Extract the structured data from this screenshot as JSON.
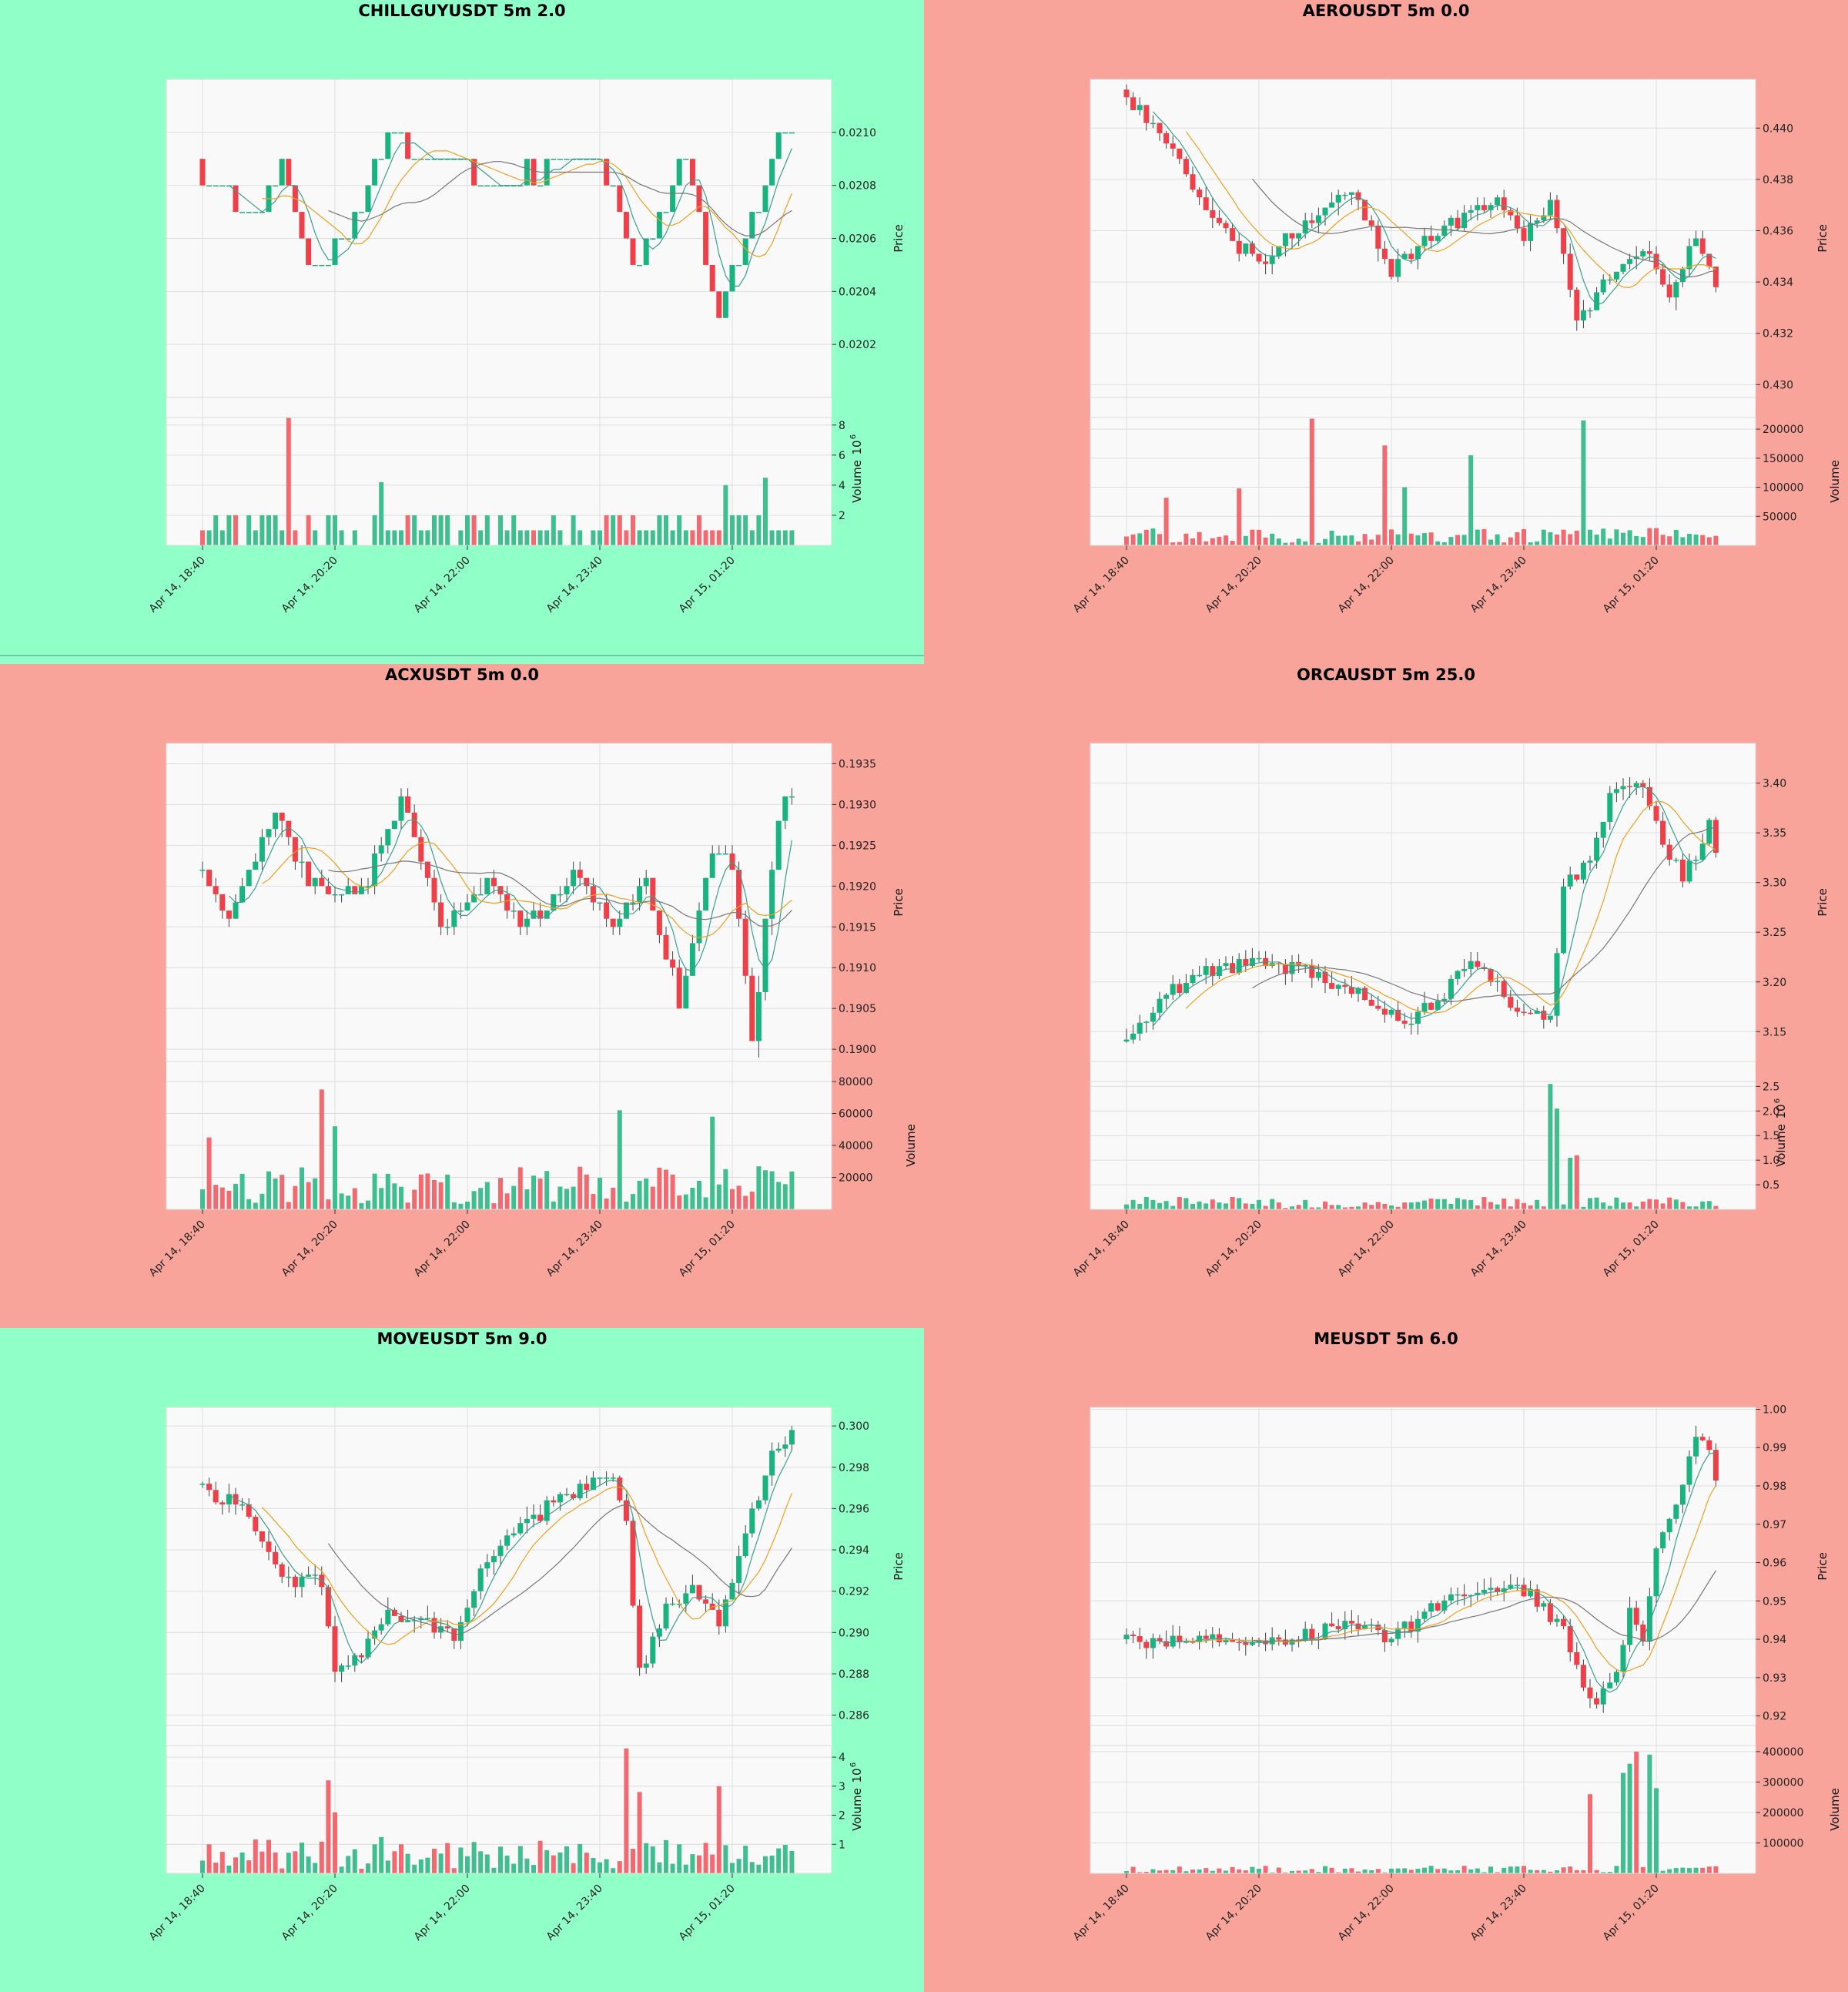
{
  "colors": {
    "up": "#19b380",
    "down": "#ef3f48",
    "vol_up": "#3fbf8f",
    "vol_down": "#f26a6f",
    "panel_green": "#90ffc8",
    "panel_red": "#f8a49b",
    "plot_bg": "#f9f9f9",
    "grid": "#dedede",
    "ma_fast": "#3aa18a",
    "ma_mid": "#f0a020",
    "ma_slow": "#777777"
  },
  "x_tick_labels": [
    "Apr 14, 18:40",
    "Apr 14, 20:20",
    "Apr 14, 22:00",
    "Apr 14, 23:40",
    "Apr 15, 01:20"
  ],
  "chart_data": [
    {
      "type": "candlestick",
      "title": "CHILLGUYUSDT 5m 2.0",
      "background": "green",
      "ylabel": "Price",
      "vol_label": "Volume",
      "vol_exp": "10",
      "vol_exp_power": "6",
      "ylim": [
        0.02,
        0.0212
      ],
      "price_ticks": [
        "0.0202",
        "0.0204",
        "0.0206",
        "0.0208",
        "0.0210"
      ],
      "vol_ylim": [
        0,
        8.5
      ],
      "vol_ticks": [
        "2",
        "4",
        "6",
        "8"
      ],
      "start": 0.0209,
      "n": 90,
      "vol": 1.0,
      "vol_max": 8.5,
      "vol_dec": 0,
      "dec": 4,
      "tick": 0.0001,
      "keys": [
        [
          0,
          0.0208
        ],
        [
          8,
          0.0207
        ],
        [
          12,
          0.0209
        ],
        [
          16,
          0.0205
        ],
        [
          22,
          0.0206
        ],
        [
          28,
          0.021
        ],
        [
          35,
          0.0209
        ],
        [
          45,
          0.0208
        ],
        [
          55,
          0.0209
        ],
        [
          60,
          0.0209
        ],
        [
          66,
          0.0205
        ],
        [
          73,
          0.0209
        ],
        [
          78,
          0.0203
        ],
        [
          83,
          0.0207
        ],
        [
          87,
          0.021
        ],
        [
          89,
          0.021
        ]
      ],
      "spikes": [
        [
          13,
          8.5
        ],
        [
          27,
          4.2
        ],
        [
          79,
          4.0
        ],
        [
          85,
          4.5
        ]
      ]
    },
    {
      "type": "candlestick",
      "title": "AEROUSDT 5m 0.0",
      "background": "red",
      "ylabel": "Price",
      "vol_label": "Volume",
      "ylim": [
        0.4295,
        0.4419
      ],
      "price_ticks": [
        "0.430",
        "0.432",
        "0.434",
        "0.436",
        "0.438",
        "0.440"
      ],
      "vol_ylim": [
        0,
        220000
      ],
      "vol_ticks": [
        "50000",
        "100000",
        "150000",
        "200000"
      ],
      "start": 0.4415,
      "n": 90,
      "vol": 12000,
      "vol_max": 220000,
      "vol_dec": 0,
      "dec": 4,
      "tick": 0,
      "keys": [
        [
          0,
          0.4412
        ],
        [
          6,
          0.4395
        ],
        [
          14,
          0.436
        ],
        [
          20,
          0.4348
        ],
        [
          28,
          0.4365
        ],
        [
          34,
          0.4375
        ],
        [
          40,
          0.4345
        ],
        [
          48,
          0.4362
        ],
        [
          56,
          0.4372
        ],
        [
          60,
          0.4358
        ],
        [
          64,
          0.4372
        ],
        [
          68,
          0.4325
        ],
        [
          72,
          0.4338
        ],
        [
          78,
          0.4355
        ],
        [
          82,
          0.4332
        ],
        [
          86,
          0.4358
        ],
        [
          89,
          0.4335
        ]
      ],
      "spikes": [
        [
          28,
          218000
        ],
        [
          39,
          172000
        ],
        [
          42,
          100000
        ],
        [
          52,
          155000
        ],
        [
          69,
          215000
        ],
        [
          6,
          82000
        ],
        [
          17,
          98000
        ]
      ]
    },
    {
      "type": "candlestick",
      "title": "ACXUSDT 5m 0.0",
      "background": "red",
      "ylabel": "Price",
      "vol_label": "Volume",
      "ylim": [
        0.18985,
        0.19375
      ],
      "price_ticks": [
        "0.1900",
        "0.1905",
        "0.1910",
        "0.1915",
        "0.1920",
        "0.1925",
        "0.1930",
        "0.1935"
      ],
      "vol_ylim": [
        0,
        80000
      ],
      "vol_ticks": [
        "20000",
        "40000",
        "60000",
        "80000"
      ],
      "start": 0.1922,
      "n": 90,
      "vol": 11000,
      "vol_max": 80000,
      "vol_dec": 0,
      "dec": 4,
      "tick": 0,
      "keys": [
        [
          0,
          0.1922
        ],
        [
          4,
          0.1916
        ],
        [
          11,
          0.1929
        ],
        [
          16,
          0.192
        ],
        [
          24,
          0.1919
        ],
        [
          30,
          0.1931
        ],
        [
          36,
          0.1915
        ],
        [
          43,
          0.1921
        ],
        [
          48,
          0.1915
        ],
        [
          56,
          0.1921
        ],
        [
          62,
          0.1916
        ],
        [
          67,
          0.192
        ],
        [
          72,
          0.1906
        ],
        [
          77,
          0.1925
        ],
        [
          80,
          0.1923
        ],
        [
          83,
          0.1901
        ],
        [
          86,
          0.1923
        ],
        [
          88,
          0.1931
        ],
        [
          89,
          0.1931
        ]
      ],
      "spikes": [
        [
          18,
          75000
        ],
        [
          20,
          52000
        ],
        [
          63,
          62000
        ],
        [
          77,
          58000
        ],
        [
          1,
          45000
        ]
      ]
    },
    {
      "type": "candlestick",
      "title": "ORCAUSDT 5m 25.0",
      "background": "red",
      "ylabel": "Price",
      "vol_label": "Volume",
      "vol_exp": "10",
      "vol_exp_power": "6",
      "ylim": [
        3.12,
        3.44
      ],
      "price_ticks": [
        "3.15",
        "3.20",
        "3.25",
        "3.30",
        "3.35",
        "3.40"
      ],
      "vol_ylim": [
        0,
        2.6
      ],
      "vol_ticks": [
        "0.5",
        "1.0",
        "1.5",
        "2.0",
        "2.5"
      ],
      "start": 3.14,
      "n": 90,
      "vol": 0.1,
      "vol_max": 2.6,
      "vol_dec": 2,
      "dec": 3,
      "tick": 0,
      "keys": [
        [
          0,
          3.14
        ],
        [
          6,
          3.19
        ],
        [
          12,
          3.21
        ],
        [
          20,
          3.22
        ],
        [
          28,
          3.21
        ],
        [
          34,
          3.19
        ],
        [
          42,
          3.16
        ],
        [
          48,
          3.19
        ],
        [
          52,
          3.22
        ],
        [
          58,
          3.18
        ],
        [
          64,
          3.16
        ],
        [
          66,
          3.29
        ],
        [
          70,
          3.33
        ],
        [
          74,
          3.4
        ],
        [
          78,
          3.39
        ],
        [
          80,
          3.36
        ],
        [
          84,
          3.3
        ],
        [
          88,
          3.36
        ],
        [
          89,
          3.33
        ]
      ],
      "spikes": [
        [
          64,
          2.55
        ],
        [
          65,
          2.05
        ],
        [
          67,
          1.05
        ],
        [
          68,
          1.1
        ]
      ]
    },
    {
      "type": "candlestick",
      "title": "MOVEUSDT 5m 9.0",
      "background": "green",
      "ylabel": "Price",
      "vol_label": "Volume",
      "vol_exp": "10",
      "vol_exp_power": "6",
      "ylim": [
        0.2855,
        0.3009
      ],
      "price_ticks": [
        "0.286",
        "0.288",
        "0.290",
        "0.292",
        "0.294",
        "0.296",
        "0.298",
        "0.300"
      ],
      "vol_ylim": [
        0,
        4.4
      ],
      "vol_ticks": [
        "1",
        "2",
        "3",
        "4"
      ],
      "start": 0.2972,
      "n": 90,
      "vol": 0.5,
      "vol_max": 4.4,
      "vol_dec": 2,
      "dec": 4,
      "tick": 0,
      "keys": [
        [
          0,
          0.297
        ],
        [
          6,
          0.296
        ],
        [
          10,
          0.2935
        ],
        [
          14,
          0.2925
        ],
        [
          18,
          0.2925
        ],
        [
          20,
          0.2882
        ],
        [
          24,
          0.289
        ],
        [
          28,
          0.291
        ],
        [
          34,
          0.2905
        ],
        [
          38,
          0.29
        ],
        [
          42,
          0.293
        ],
        [
          48,
          0.295
        ],
        [
          54,
          0.2965
        ],
        [
          58,
          0.297
        ],
        [
          62,
          0.2975
        ],
        [
          64,
          0.295
        ],
        [
          66,
          0.288
        ],
        [
          70,
          0.291
        ],
        [
          74,
          0.292
        ],
        [
          78,
          0.2905
        ],
        [
          82,
          0.295
        ],
        [
          86,
          0.2985
        ],
        [
          89,
          0.2999
        ]
      ],
      "spikes": [
        [
          19,
          3.2
        ],
        [
          20,
          2.1
        ],
        [
          64,
          4.3
        ],
        [
          66,
          2.8
        ],
        [
          78,
          3.0
        ]
      ]
    },
    {
      "type": "candlestick",
      "title": "MEUSDT 5m 6.0",
      "background": "red",
      "ylabel": "Price",
      "vol_label": "Volume",
      "ylim": [
        0.9175,
        1.0005
      ],
      "price_ticks": [
        "0.92",
        "0.93",
        "0.94",
        "0.95",
        "0.96",
        "0.97",
        "0.98",
        "0.99",
        "1.00"
      ],
      "vol_ylim": [
        0,
        420000
      ],
      "vol_ticks": [
        "100000",
        "200000",
        "300000",
        "400000"
      ],
      "start": 0.94,
      "n": 90,
      "vol": 10000,
      "vol_max": 420000,
      "vol_dec": 0,
      "dec": 4,
      "tick": 0,
      "keys": [
        [
          0,
          0.94
        ],
        [
          6,
          0.939
        ],
        [
          12,
          0.941
        ],
        [
          18,
          0.937
        ],
        [
          26,
          0.94
        ],
        [
          34,
          0.945
        ],
        [
          40,
          0.94
        ],
        [
          46,
          0.948
        ],
        [
          52,
          0.952
        ],
        [
          58,
          0.954
        ],
        [
          62,
          0.95
        ],
        [
          66,
          0.942
        ],
        [
          70,
          0.923
        ],
        [
          74,
          0.931
        ],
        [
          76,
          0.947
        ],
        [
          78,
          0.939
        ],
        [
          80,
          0.964
        ],
        [
          84,
          0.98
        ],
        [
          86,
          0.992
        ],
        [
          88,
          0.99
        ],
        [
          89,
          0.983
        ]
      ],
      "spikes": [
        [
          70,
          260000
        ],
        [
          75,
          330000
        ],
        [
          76,
          360000
        ],
        [
          77,
          400000
        ],
        [
          79,
          390000
        ],
        [
          80,
          280000
        ]
      ]
    }
  ]
}
